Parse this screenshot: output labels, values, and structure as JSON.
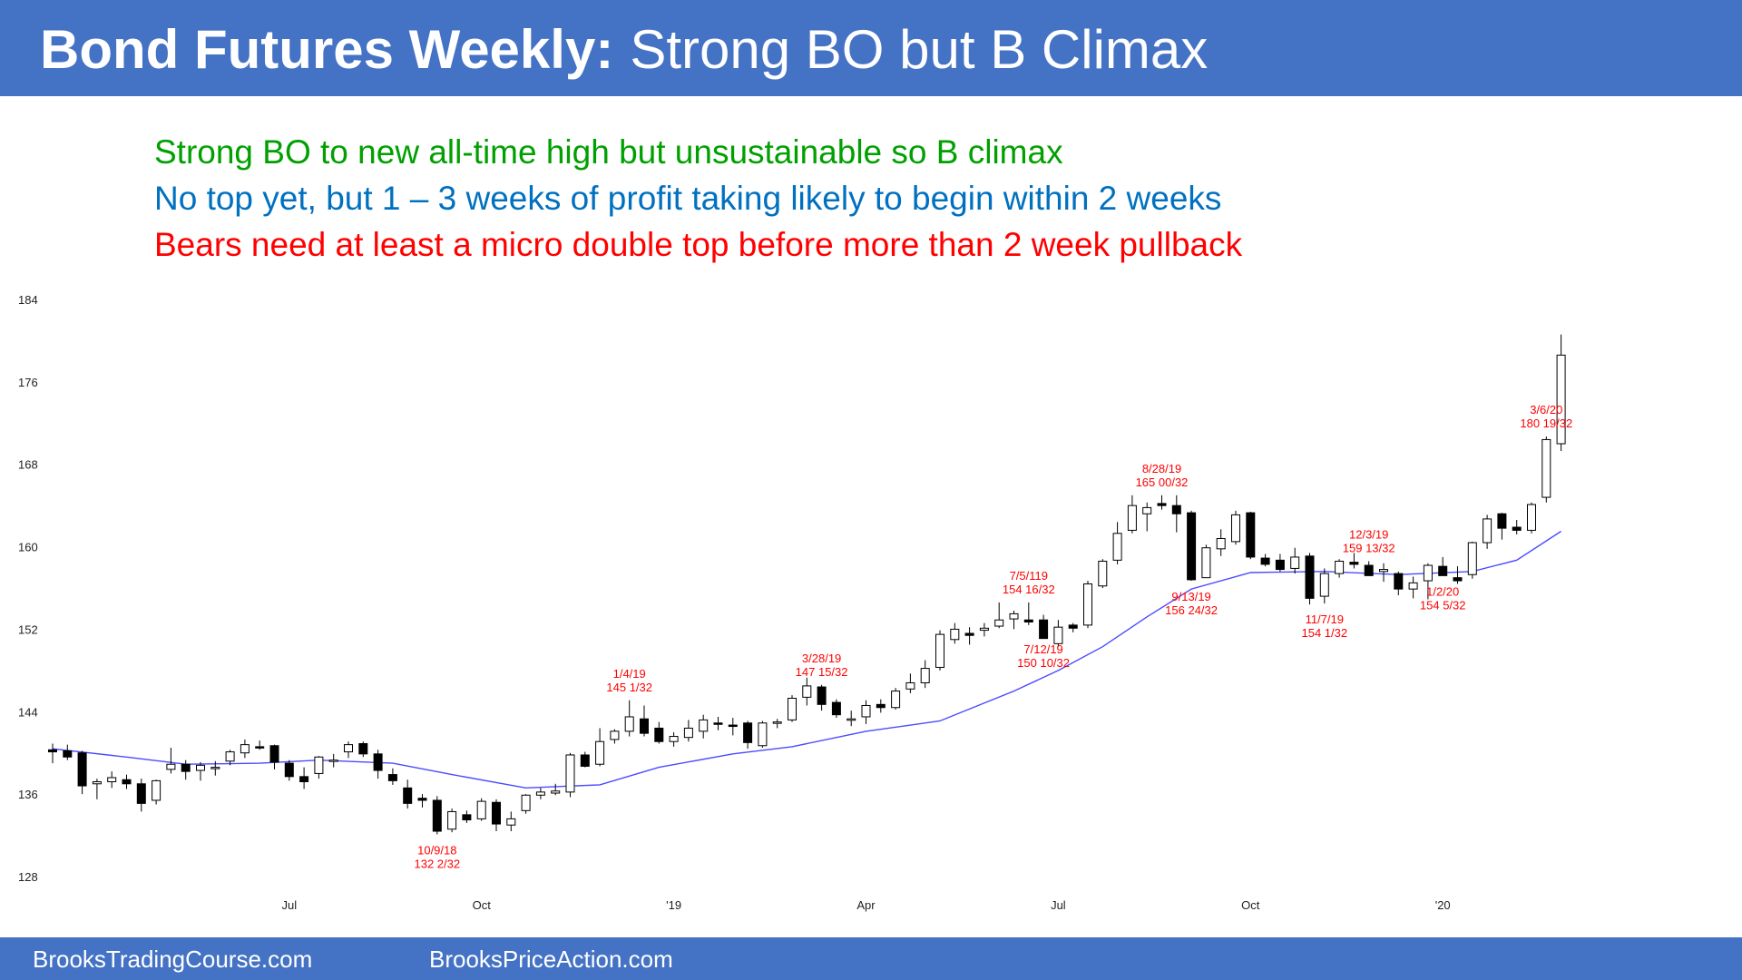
{
  "title": {
    "bold": "Bond Futures Weekly:",
    "rest": "Strong BO but B Climax"
  },
  "notes": [
    {
      "text": "Strong BO to new all-time high but unsustainable so B climax",
      "color": "#00a000"
    },
    {
      "text": "No top yet, but 1 – 3 weeks of profit taking likely to begin within 2 weeks",
      "color": "#0070c0"
    },
    {
      "text": "Bears need at least a micro double top before more than 2 week pullback",
      "color": "#ff0000"
    }
  ],
  "footer": {
    "left": "BrooksTradingCourse.com",
    "right": "BrooksPriceAction.com"
  },
  "colors": {
    "bar": "#4472c4",
    "ema": "#4b4bff",
    "annotation": "#ff0000"
  },
  "chart_data": {
    "type": "candlestick",
    "ylim": [
      128,
      184
    ],
    "yticks": [
      128,
      136,
      144,
      152,
      160,
      168,
      176,
      184
    ],
    "xticks": [
      {
        "label": "Jul",
        "week": 16
      },
      {
        "label": "Oct",
        "week": 29
      },
      {
        "label": "'19",
        "week": 42
      },
      {
        "label": "Apr",
        "week": 55
      },
      {
        "label": "Jul",
        "week": 68
      },
      {
        "label": "Oct",
        "week": 81
      },
      {
        "label": "'20",
        "week": 94
      }
    ],
    "candles": [
      [
        140.3,
        140.9,
        139.0,
        140.1
      ],
      [
        140.2,
        140.8,
        139.3,
        139.6
      ],
      [
        140.0,
        140.2,
        136.0,
        136.8
      ],
      [
        137.0,
        137.5,
        135.5,
        137.2
      ],
      [
        137.2,
        138.2,
        136.6,
        137.6
      ],
      [
        137.4,
        137.9,
        136.5,
        137.0
      ],
      [
        137.0,
        137.5,
        134.3,
        135.1
      ],
      [
        135.4,
        137.4,
        135.0,
        137.3
      ],
      [
        138.4,
        140.5,
        138.0,
        138.9
      ],
      [
        138.9,
        139.3,
        137.4,
        138.2
      ],
      [
        138.3,
        139.1,
        137.3,
        138.8
      ],
      [
        138.6,
        139.2,
        137.8,
        138.6
      ],
      [
        139.2,
        140.3,
        138.8,
        140.1
      ],
      [
        140.0,
        141.3,
        139.5,
        140.8
      ],
      [
        140.6,
        141.2,
        140.3,
        140.5
      ],
      [
        140.7,
        140.8,
        138.4,
        139.1
      ],
      [
        139.0,
        139.3,
        137.3,
        137.7
      ],
      [
        137.7,
        138.6,
        136.5,
        137.2
      ],
      [
        138.0,
        139.7,
        137.5,
        139.6
      ],
      [
        139.2,
        139.9,
        138.6,
        139.3
      ],
      [
        140.1,
        141.1,
        139.5,
        140.8
      ],
      [
        140.9,
        141.1,
        139.6,
        139.9
      ],
      [
        139.9,
        140.3,
        137.5,
        138.3
      ],
      [
        137.9,
        138.5,
        136.9,
        137.3
      ],
      [
        136.6,
        137.4,
        134.6,
        135.1
      ],
      [
        135.6,
        136.0,
        134.7,
        135.4
      ],
      [
        135.4,
        135.8,
        132.1,
        132.4
      ],
      [
        132.6,
        134.6,
        132.3,
        134.3
      ],
      [
        134.0,
        134.4,
        133.2,
        133.5
      ],
      [
        133.6,
        135.6,
        133.4,
        135.3
      ],
      [
        135.2,
        135.5,
        132.4,
        133.1
      ],
      [
        133.0,
        134.3,
        132.4,
        133.6
      ],
      [
        134.4,
        136.0,
        134.1,
        135.9
      ],
      [
        135.9,
        136.6,
        135.5,
        136.2
      ],
      [
        136.1,
        137.0,
        135.9,
        136.3
      ],
      [
        136.2,
        140.0,
        135.7,
        139.8
      ],
      [
        139.8,
        140.1,
        138.6,
        138.7
      ],
      [
        138.9,
        142.4,
        138.7,
        141.1
      ],
      [
        141.3,
        142.3,
        140.9,
        142.1
      ],
      [
        142.1,
        145.1,
        141.6,
        143.5
      ],
      [
        143.3,
        144.6,
        141.6,
        141.9
      ],
      [
        142.4,
        143.0,
        140.9,
        141.1
      ],
      [
        141.1,
        142.0,
        140.6,
        141.6
      ],
      [
        141.5,
        143.2,
        141.1,
        142.4
      ],
      [
        142.1,
        143.7,
        141.4,
        143.2
      ],
      [
        142.9,
        143.5,
        142.2,
        142.8
      ],
      [
        142.7,
        143.4,
        141.7,
        142.6
      ],
      [
        142.9,
        143.1,
        140.4,
        141.0
      ],
      [
        140.7,
        143.1,
        140.5,
        142.9
      ],
      [
        142.9,
        143.3,
        142.4,
        143.0
      ],
      [
        143.2,
        145.6,
        143.0,
        145.3
      ],
      [
        145.4,
        147.3,
        144.6,
        146.5
      ],
      [
        146.4,
        146.6,
        144.1,
        144.7
      ],
      [
        144.9,
        145.2,
        143.4,
        143.7
      ],
      [
        143.3,
        144.1,
        142.6,
        143.3
      ],
      [
        143.5,
        145.1,
        142.8,
        144.6
      ],
      [
        144.7,
        145.2,
        143.9,
        144.4
      ],
      [
        144.4,
        146.3,
        144.2,
        146.0
      ],
      [
        146.2,
        147.7,
        145.8,
        146.8
      ],
      [
        146.8,
        149.0,
        146.3,
        148.2
      ],
      [
        148.3,
        151.9,
        148.0,
        151.5
      ],
      [
        151.0,
        152.6,
        150.6,
        152.0
      ],
      [
        151.6,
        152.2,
        150.5,
        151.4
      ],
      [
        151.9,
        152.6,
        151.3,
        152.1
      ],
      [
        152.3,
        154.6,
        152.1,
        152.9
      ],
      [
        153.0,
        153.8,
        152.0,
        153.5
      ],
      [
        152.9,
        154.6,
        152.4,
        152.7
      ],
      [
        152.9,
        153.4,
        151.6,
        151.1
      ],
      [
        150.6,
        152.9,
        150.3,
        152.2
      ],
      [
        152.4,
        152.6,
        151.7,
        152.1
      ],
      [
        152.4,
        156.7,
        152.1,
        156.4
      ],
      [
        156.2,
        158.8,
        156.0,
        158.6
      ],
      [
        158.7,
        162.4,
        158.3,
        161.3
      ],
      [
        161.6,
        165.0,
        161.3,
        164.0
      ],
      [
        163.2,
        164.3,
        161.5,
        163.8
      ],
      [
        164.2,
        165.0,
        163.6,
        164.0
      ],
      [
        164.0,
        165.0,
        161.4,
        163.2
      ],
      [
        163.3,
        163.5,
        156.7,
        156.8
      ],
      [
        157.0,
        160.2,
        157.0,
        159.9
      ],
      [
        159.8,
        161.7,
        159.1,
        160.8
      ],
      [
        160.5,
        163.5,
        160.2,
        163.1
      ],
      [
        163.3,
        163.4,
        158.8,
        159.0
      ],
      [
        158.9,
        159.3,
        158.1,
        158.3
      ],
      [
        158.7,
        159.3,
        157.6,
        157.8
      ],
      [
        157.9,
        159.9,
        157.4,
        159.0
      ],
      [
        159.1,
        159.4,
        154.4,
        155.0
      ],
      [
        155.2,
        157.9,
        154.5,
        157.4
      ],
      [
        157.4,
        158.8,
        157.0,
        158.6
      ],
      [
        158.5,
        159.4,
        157.9,
        158.3
      ],
      [
        158.2,
        158.6,
        157.3,
        157.2
      ],
      [
        157.6,
        158.4,
        156.6,
        157.8
      ],
      [
        157.4,
        157.6,
        155.3,
        155.9
      ],
      [
        155.9,
        157.1,
        155.0,
        156.5
      ],
      [
        156.7,
        158.4,
        154.9,
        158.2
      ],
      [
        158.1,
        159.0,
        157.2,
        157.2
      ],
      [
        157.0,
        158.1,
        156.4,
        156.7
      ],
      [
        157.3,
        160.5,
        156.9,
        160.4
      ],
      [
        160.4,
        163.1,
        159.8,
        162.7
      ],
      [
        163.2,
        163.3,
        160.7,
        161.8
      ],
      [
        161.9,
        162.6,
        161.2,
        161.6
      ],
      [
        161.6,
        164.3,
        161.3,
        164.1
      ],
      [
        164.8,
        170.7,
        164.3,
        170.4
      ],
      [
        170.0,
        180.6,
        169.3,
        178.6
      ]
    ],
    "ema": [
      [
        0,
        140.4
      ],
      [
        5,
        139.6
      ],
      [
        9,
        138.9
      ],
      [
        14,
        139.0
      ],
      [
        18,
        139.3
      ],
      [
        23,
        139.0
      ],
      [
        27,
        137.9
      ],
      [
        32,
        136.6
      ],
      [
        37,
        136.9
      ],
      [
        41,
        138.6
      ],
      [
        46,
        139.9
      ],
      [
        50,
        140.6
      ],
      [
        55,
        142.1
      ],
      [
        60,
        143.1
      ],
      [
        65,
        146.0
      ],
      [
        68,
        148.0
      ],
      [
        71,
        150.3
      ],
      [
        74,
        153.2
      ],
      [
        77,
        155.9
      ],
      [
        81,
        157.5
      ],
      [
        86,
        157.6
      ],
      [
        91,
        157.3
      ],
      [
        96,
        157.6
      ],
      [
        99,
        158.7
      ],
      [
        102,
        161.5
      ]
    ],
    "annotations": [
      {
        "week": 101,
        "lines": [
          "3/6/20",
          "180 19/32"
        ],
        "above": true
      },
      {
        "week": 75,
        "lines": [
          "8/28/19",
          "165 00/32"
        ],
        "above": true
      },
      {
        "week": 66,
        "lines": [
          "7/5/119",
          "154 16/32"
        ],
        "above": true
      },
      {
        "week": 52,
        "lines": [
          "3/28/19",
          "147 15/32"
        ],
        "above": true
      },
      {
        "week": 39,
        "lines": [
          "1/4/19",
          "145 1/32"
        ],
        "above": true
      },
      {
        "week": 89,
        "lines": [
          "12/3/19",
          "159 13/32"
        ],
        "above": true
      },
      {
        "week": 26,
        "lines": [
          "10/9/18",
          "132 2/32"
        ],
        "above": false
      },
      {
        "week": 67,
        "lines": [
          "7/12/19",
          "150 10/32"
        ],
        "above": false
      },
      {
        "week": 77,
        "lines": [
          "9/13/19",
          "156 24/32"
        ],
        "above": false
      },
      {
        "week": 86,
        "lines": [
          "11/7/19",
          "154 1/32"
        ],
        "above": false
      },
      {
        "week": 94,
        "lines": [
          "1/2/20",
          "154 5/32"
        ],
        "above": false
      }
    ]
  }
}
